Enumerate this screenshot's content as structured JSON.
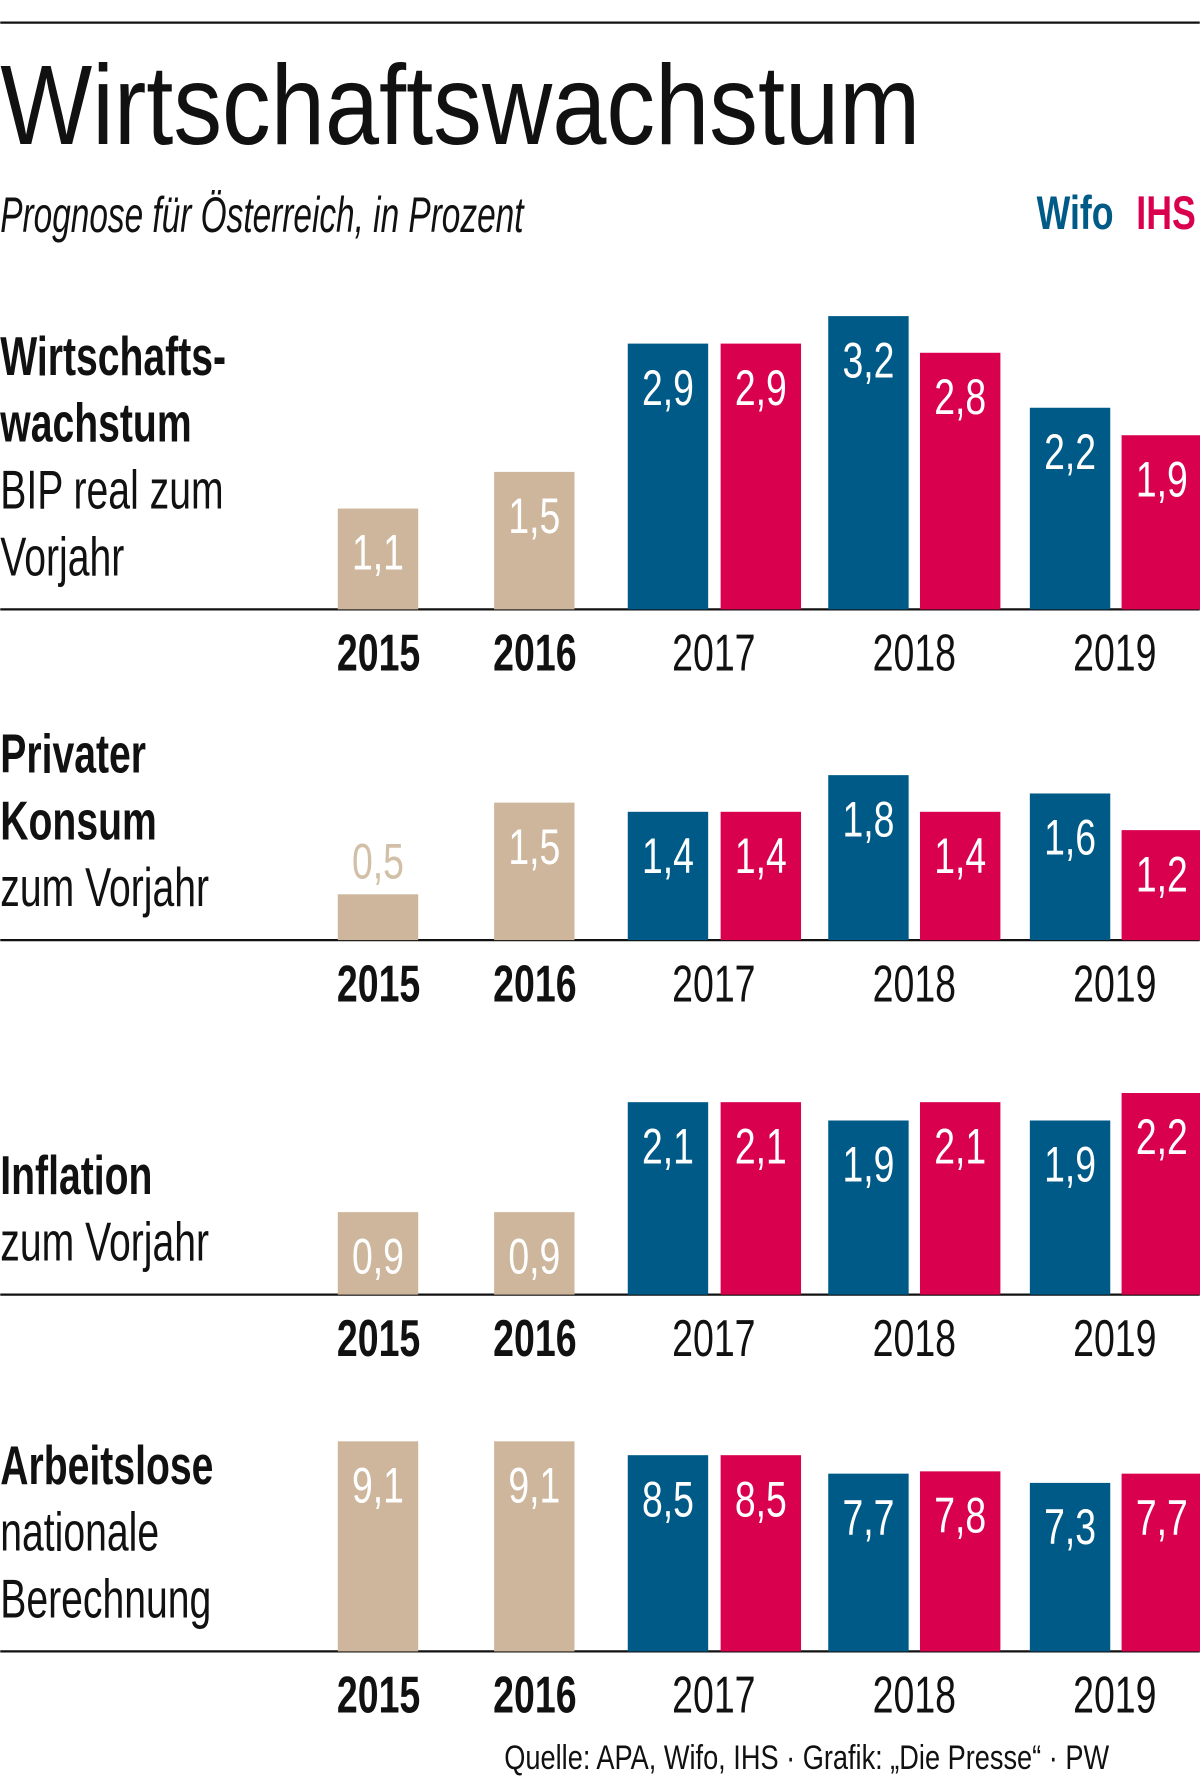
{
  "title": "Wirtschaftswachstum",
  "subtitle": "Prognose für Österreich, in Prozent",
  "source": "Quelle: APA, Wifo, IHS · Grafik: „Die Presse“ · PW",
  "chart_data": [
    {
      "type": "bar",
      "title": [
        "Wirtschafts-",
        "wachstum"
      ],
      "subtitle": [
        "BIP real zum",
        "Vorjahr"
      ],
      "categories": [
        "2015",
        "2016",
        "2017",
        "2018",
        "2019"
      ],
      "ylim": [
        0,
        3.3
      ],
      "values": [
        1.1,
        1.5,
        null,
        null,
        null
      ],
      "value_labels": [
        "1,1",
        "1,5",
        null,
        null,
        null
      ],
      "color": "#cdb69c",
      "series": [
        {
          "name": "Wifo",
          "color": "#005a87",
          "values": [
            null,
            null,
            2.9,
            3.2,
            2.2
          ],
          "value_labels": [
            null,
            null,
            "2,9",
            "3,2",
            "2,2"
          ]
        },
        {
          "name": "IHS",
          "color": "#d9004e",
          "values": [
            null,
            null,
            2.9,
            2.8,
            1.9
          ],
          "value_labels": [
            null,
            null,
            "2,9",
            "2,8",
            "1,9"
          ]
        }
      ]
    },
    {
      "type": "bar",
      "title": [
        "Privater",
        "Konsum"
      ],
      "subtitle": [
        "zum Vorjahr"
      ],
      "categories": [
        "2015",
        "2016",
        "2017",
        "2018",
        "2019"
      ],
      "ylim": [
        0,
        3.3
      ],
      "values": [
        0.5,
        1.5,
        null,
        null,
        null
      ],
      "value_labels": [
        "0,5",
        "1,5",
        null,
        null,
        null
      ],
      "color": "#cdb69c",
      "series": [
        {
          "color": "#005a87",
          "values": [
            null,
            null,
            1.4,
            1.8,
            1.6
          ],
          "value_labels": [
            null,
            null,
            "1,4",
            "1,8",
            "1,6"
          ]
        },
        {
          "color": "#d9004e",
          "values": [
            null,
            null,
            1.4,
            1.4,
            1.2
          ],
          "value_labels": [
            null,
            null,
            "1,4",
            "1,4",
            "1,2"
          ]
        }
      ]
    },
    {
      "type": "bar",
      "title": [
        "Inflation"
      ],
      "subtitle": [
        "zum Vorjahr"
      ],
      "categories": [
        "2015",
        "2016",
        "2017",
        "2018",
        "2019"
      ],
      "ylim": [
        0,
        3.3
      ],
      "values": [
        0.9,
        0.9,
        null,
        null,
        null
      ],
      "value_labels": [
        "0,9",
        "0,9",
        null,
        null,
        null
      ],
      "color": "#cdb69c",
      "series": [
        {
          "color": "#005a87",
          "values": [
            null,
            null,
            2.1,
            1.9,
            1.9
          ],
          "value_labels": [
            null,
            null,
            "2,1",
            "1,9",
            "1,9"
          ]
        },
        {
          "color": "#d9004e",
          "values": [
            null,
            null,
            2.1,
            2.1,
            2.2
          ],
          "value_labels": [
            null,
            null,
            "2,1",
            "2,1",
            "2,2"
          ]
        }
      ]
    },
    {
      "type": "bar",
      "title": [
        "Arbeitslose"
      ],
      "subtitle": [
        "nationale",
        "Berechnung"
      ],
      "categories": [
        "2015",
        "2016",
        "2017",
        "2018",
        "2019"
      ],
      "ylim": [
        0,
        13.1
      ],
      "values": [
        9.1,
        9.1,
        null,
        null,
        null
      ],
      "value_labels": [
        "9,1",
        "9,1",
        null,
        null,
        null
      ],
      "color": "#cdb69c",
      "series": [
        {
          "color": "#005a87",
          "values": [
            null,
            null,
            8.5,
            7.7,
            7.3
          ],
          "value_labels": [
            null,
            null,
            "8,5",
            "7,7",
            "7,3"
          ]
        },
        {
          "color": "#d9004e",
          "values": [
            null,
            null,
            8.5,
            7.8,
            7.7
          ],
          "value_labels": [
            null,
            null,
            "8,5",
            "7,8",
            "7,7"
          ]
        }
      ]
    }
  ]
}
